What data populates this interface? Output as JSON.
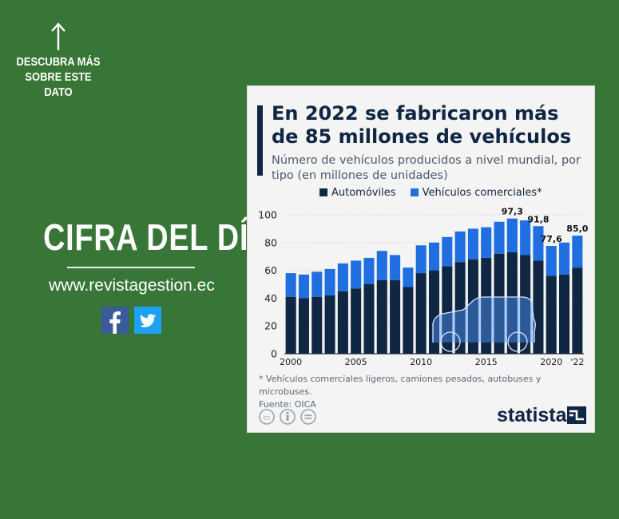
{
  "promo": {
    "cta": "DESCUBRA MÁS SOBRE ESTE DATO",
    "heading": "CIFRA DEL DÍA",
    "website": "www.revistagestion.ec"
  },
  "card": {
    "title": "En 2022 se fabricaron más de 85 millones de vehículos",
    "subtitle": "Número de vehículos producidos a nivel mundial, por tipo (en millones de unidades)",
    "footnote": "* Vehículos comerciales ligeros, camiones pesados, autobuses y microbuses.",
    "source": "Fuente: OICA",
    "brand": "statista"
  },
  "colors": {
    "background": "#377636",
    "automoviles": "#0f2742",
    "comerciales": "#1f6fe0"
  },
  "chart_data": {
    "type": "bar",
    "stacked": true,
    "categories": [
      "2000",
      "2001",
      "2002",
      "2003",
      "2004",
      "2005",
      "2006",
      "2007",
      "2008",
      "2009",
      "2010",
      "2011",
      "2012",
      "2013",
      "2014",
      "2015",
      "2016",
      "2017",
      "2018",
      "2019",
      "2020",
      "2021",
      "2022"
    ],
    "series": [
      {
        "name": "Automóviles",
        "values": [
          41,
          40,
          41,
          42,
          45,
          47,
          50,
          53,
          53,
          48,
          58,
          60,
          63,
          66,
          68,
          69,
          72,
          73,
          71,
          67,
          56,
          57,
          62
        ]
      },
      {
        "name": "Vehículos comerciales*",
        "values": [
          17,
          17,
          18,
          19,
          20,
          20,
          19,
          21,
          18,
          14,
          20,
          20,
          21,
          22,
          22,
          22,
          23,
          24.3,
          25,
          24.8,
          21.6,
          23,
          23
        ]
      }
    ],
    "totals": [
      58,
      57,
      59,
      61,
      65,
      67,
      69,
      74,
      71,
      62,
      78,
      80,
      84,
      88,
      90,
      91,
      95,
      97.3,
      96,
      91.8,
      77.6,
      80,
      85.0
    ],
    "data_labels": [
      {
        "category": "2017",
        "text": "97,3"
      },
      {
        "category": "2019",
        "text": "91,8"
      },
      {
        "category": "2020",
        "text": "77,6"
      },
      {
        "category": "2022",
        "text": "85,0"
      }
    ],
    "x_tick_labels": [
      {
        "category": "2000",
        "text": "2000"
      },
      {
        "category": "2005",
        "text": "2005"
      },
      {
        "category": "2010",
        "text": "2010"
      },
      {
        "category": "2015",
        "text": "2015"
      },
      {
        "category": "2020",
        "text": "2020"
      },
      {
        "category": "2022",
        "text": "'22"
      }
    ],
    "y_ticks": [
      "0",
      "20",
      "40",
      "60",
      "80",
      "100"
    ],
    "ylim": [
      0,
      100
    ],
    "grid": true,
    "legend_placement": "top"
  }
}
